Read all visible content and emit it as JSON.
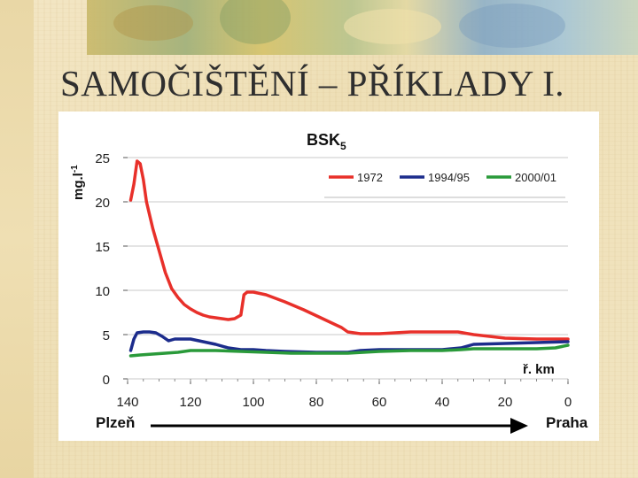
{
  "slide": {
    "title": "SAMOČIŠTĚNÍ – PŘÍKLADY I."
  },
  "colors": {
    "series_1972": "#e8302a",
    "series_1994": "#1c2c8c",
    "series_2000": "#2a9a3a"
  },
  "chart_data": {
    "type": "line",
    "title": "BSK",
    "title_subscript": "5",
    "ylabel": "mg.l",
    "ylabel_superscript": "-1",
    "xlabel": "ř. km",
    "x_reversed": true,
    "xlim": [
      0,
      140
    ],
    "ylim": [
      0,
      25
    ],
    "xticks": [
      "140",
      "120",
      "100",
      "80",
      "60",
      "40",
      "20",
      "0"
    ],
    "yticks": [
      "25",
      "20",
      "15",
      "10",
      "5",
      "0"
    ],
    "grid": "horizontal",
    "legend_position": "top-right",
    "direction_start": "Plzeň",
    "direction_end": "Praha",
    "series": [
      {
        "name": "1972",
        "color": "#e8302a",
        "x": [
          139,
          138,
          137,
          136,
          135,
          134,
          132,
          130,
          128,
          126,
          124,
          122,
          120,
          118,
          116,
          114,
          112,
          110,
          108,
          106,
          104,
          103,
          102,
          100,
          96,
          90,
          84,
          78,
          72,
          70,
          66,
          60,
          50,
          40,
          35,
          30,
          20,
          10,
          0
        ],
        "y": [
          20.2,
          22,
          24.6,
          24.3,
          22.5,
          20,
          17,
          14.5,
          12,
          10.2,
          9.2,
          8.4,
          7.9,
          7.5,
          7.2,
          7.0,
          6.9,
          6.8,
          6.7,
          6.8,
          7.2,
          9.5,
          9.8,
          9.8,
          9.5,
          8.7,
          7.8,
          6.8,
          5.8,
          5.3,
          5.1,
          5.1,
          5.3,
          5.3,
          5.3,
          5.0,
          4.6,
          4.5,
          4.5
        ]
      },
      {
        "name": "1994/95",
        "color": "#1c2c8c",
        "x": [
          139,
          138,
          137,
          135,
          133,
          131,
          129,
          127,
          125,
          123,
          120,
          116,
          112,
          108,
          104,
          100,
          96,
          90,
          80,
          70,
          66,
          60,
          50,
          40,
          34,
          30,
          20,
          10,
          0
        ],
        "y": [
          3.2,
          4.5,
          5.2,
          5.3,
          5.3,
          5.2,
          4.8,
          4.3,
          4.5,
          4.5,
          4.5,
          4.2,
          3.9,
          3.5,
          3.3,
          3.3,
          3.2,
          3.1,
          3.0,
          3.0,
          3.2,
          3.3,
          3.3,
          3.3,
          3.5,
          3.9,
          4.0,
          4.1,
          4.2
        ]
      },
      {
        "name": "2000/01",
        "color": "#2a9a3a",
        "x": [
          139,
          136,
          132,
          128,
          124,
          120,
          112,
          104,
          96,
          88,
          80,
          70,
          60,
          50,
          40,
          34,
          30,
          20,
          10,
          4,
          0
        ],
        "y": [
          2.6,
          2.7,
          2.8,
          2.9,
          3.0,
          3.2,
          3.2,
          3.1,
          3.0,
          2.9,
          2.9,
          2.9,
          3.1,
          3.2,
          3.2,
          3.3,
          3.4,
          3.4,
          3.4,
          3.5,
          3.8
        ]
      }
    ]
  }
}
